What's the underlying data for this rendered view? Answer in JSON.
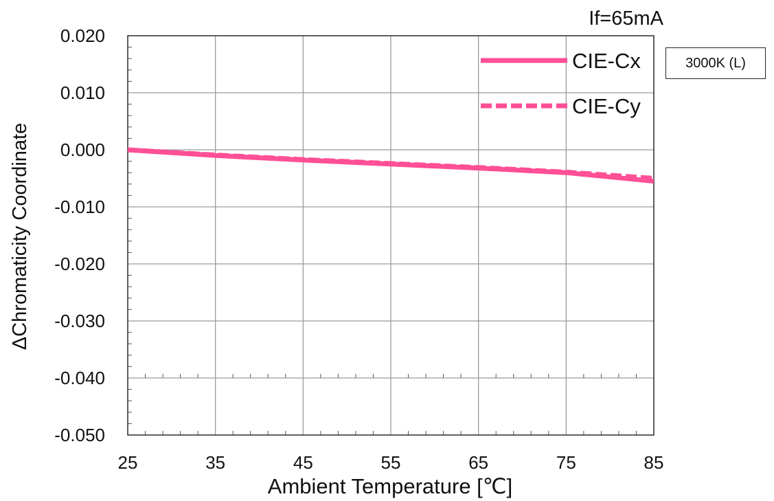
{
  "chart_data": {
    "type": "line",
    "title": "",
    "condition_label": "If=65mA",
    "tag_label": "3000K (L)",
    "xlabel": "Ambient Temperature [℃]",
    "ylabel": "ΔChromaticity Coordinate",
    "xlim": [
      25,
      85
    ],
    "ylim": [
      -0.05,
      0.02
    ],
    "x_ticks": [
      25,
      35,
      45,
      55,
      65,
      75,
      85
    ],
    "x_tick_labels": [
      "25",
      "35",
      "45",
      "55",
      "65",
      "75",
      "85"
    ],
    "y_ticks": [
      0.02,
      0.01,
      0.0,
      -0.01,
      -0.02,
      -0.03,
      -0.04,
      -0.05
    ],
    "y_tick_labels": [
      "0.020",
      "0.010",
      "0.000",
      "-0.010",
      "-0.020",
      "-0.030",
      "-0.040",
      "-0.050"
    ],
    "grid": true,
    "legend_position": "top-right",
    "series": [
      {
        "name": "CIE-Cx",
        "style": "solid",
        "color": "#ff4f96",
        "x": [
          25,
          35,
          45,
          55,
          65,
          75,
          85
        ],
        "y": [
          0.0,
          -0.001,
          -0.0018,
          -0.0025,
          -0.0032,
          -0.004,
          -0.0055
        ]
      },
      {
        "name": "CIE-Cy",
        "style": "dashed",
        "color": "#ff4f96",
        "x": [
          25,
          35,
          45,
          55,
          65,
          75,
          85
        ],
        "y": [
          0.0,
          -0.0009,
          -0.0017,
          -0.0024,
          -0.0031,
          -0.0039,
          -0.005
        ]
      }
    ]
  }
}
